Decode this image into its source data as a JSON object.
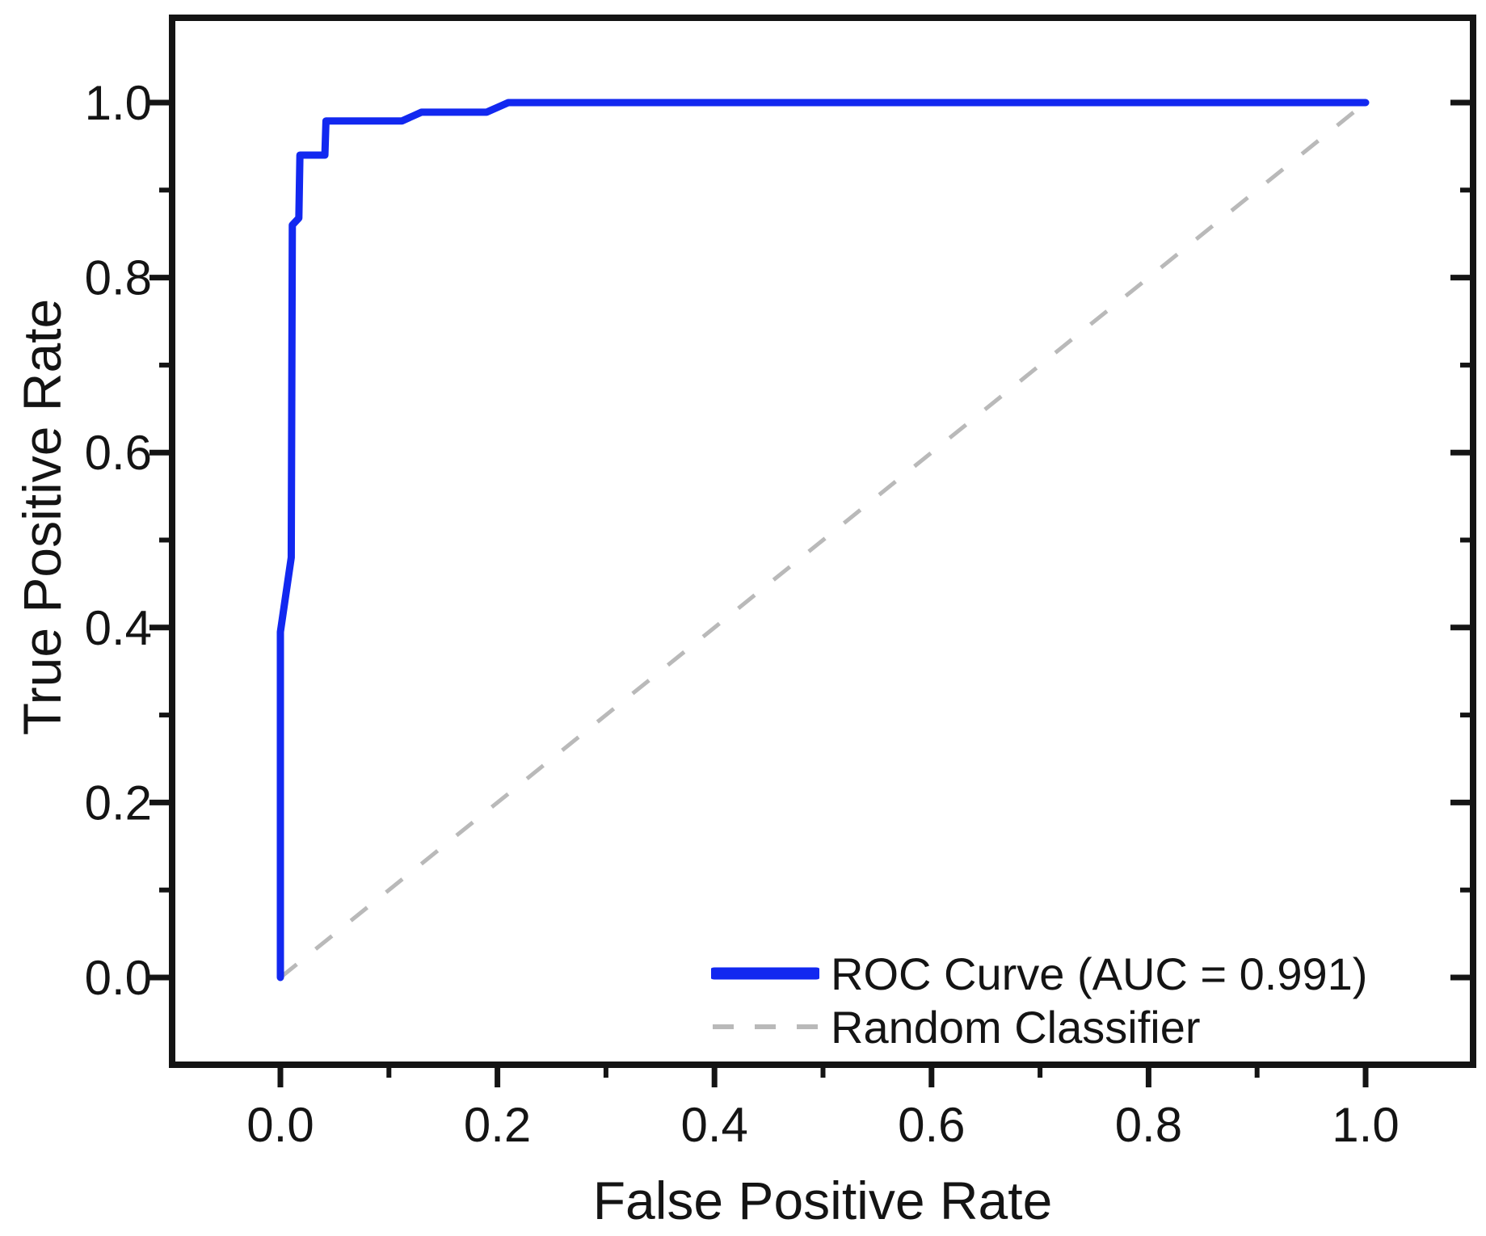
{
  "figure": {
    "background": "#ffffff",
    "frame_color": "#141414",
    "text_color": "#141414"
  },
  "legend": {
    "position": "lower-right",
    "items": [
      {
        "label": "ROC Curve (AUC = 0.991)",
        "style": "solid",
        "color": "#1228f0"
      },
      {
        "label": "Random Classifier",
        "style": "dashed",
        "color": "#b9b9b9"
      }
    ]
  },
  "chart_data": {
    "type": "line",
    "title": "",
    "xlabel": "False Positive Rate",
    "ylabel": "True Positive Rate",
    "xlim": [
      -0.1,
      1.1
    ],
    "ylim": [
      -0.1,
      1.1
    ],
    "grid": false,
    "x_ticks_major": [
      0.0,
      0.2,
      0.4,
      0.6,
      0.8,
      1.0
    ],
    "x_ticks_minor": [
      0.1,
      0.3,
      0.5,
      0.7,
      0.9
    ],
    "y_ticks_major": [
      0.0,
      0.2,
      0.4,
      0.6,
      0.8,
      1.0
    ],
    "y_ticks_minor": [
      0.1,
      0.3,
      0.5,
      0.7,
      0.9
    ],
    "tick_decimals": 1,
    "legend_position": "lower right",
    "series": [
      {
        "name": "ROC Curve (AUC = 0.991)",
        "auc": 0.991,
        "color": "#1228f0",
        "style": "solid",
        "line_width": 9,
        "points": [
          [
            0.0,
            0.0
          ],
          [
            0.0,
            0.395
          ],
          [
            0.01,
            0.48
          ],
          [
            0.011,
            0.86
          ],
          [
            0.017,
            0.868
          ],
          [
            0.018,
            0.94
          ],
          [
            0.041,
            0.94
          ],
          [
            0.042,
            0.979
          ],
          [
            0.112,
            0.979
          ],
          [
            0.13,
            0.989
          ],
          [
            0.19,
            0.989
          ],
          [
            0.21,
            1.0
          ],
          [
            1.0,
            1.0
          ]
        ]
      },
      {
        "name": "Random Classifier",
        "color": "#b9b9b9",
        "style": "dashed",
        "line_width": 5,
        "points": [
          [
            0.0,
            0.0
          ],
          [
            1.0,
            1.0
          ]
        ]
      }
    ]
  }
}
